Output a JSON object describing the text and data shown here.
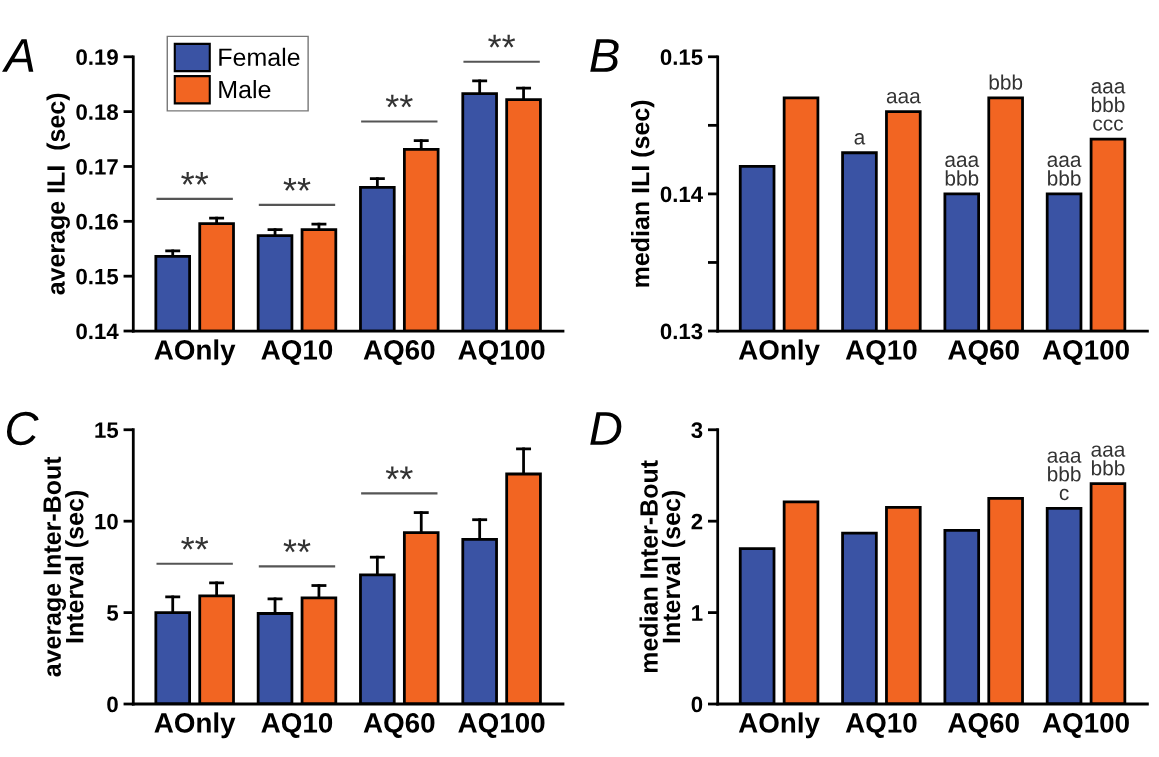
{
  "chart_data": [
    {
      "type": "bar",
      "title": "A",
      "ylabel": "average ILI  (sec)",
      "categories": [
        "AOnly",
        "AQ10",
        "AQ60",
        "AQ100"
      ],
      "ylim": [
        0.14,
        0.19
      ],
      "yticks": [
        0.14,
        0.15,
        0.16,
        0.17,
        0.18,
        0.19
      ],
      "legend": "top left",
      "grid": false,
      "series": [
        {
          "name": "Female",
          "color": "#3a53a4",
          "values": [
            0.1536,
            0.1574,
            0.1662,
            0.1833
          ],
          "errors": [
            [
              0.1536,
              0.1546
            ],
            [
              0.1574,
              0.1585
            ],
            [
              0.1662,
              0.1678
            ],
            [
              0.1833,
              0.1856
            ]
          ]
        },
        {
          "name": "Male",
          "color": "#f26522",
          "values": [
            0.1596,
            0.1585,
            0.1731,
            0.1822
          ],
          "errors": [
            [
              0.1596,
              0.1606
            ],
            [
              0.1585,
              0.1595
            ],
            [
              0.1731,
              0.1747
            ],
            [
              0.1822,
              0.1843
            ]
          ]
        }
      ],
      "annotations": [
        "**",
        "**",
        "**",
        "**"
      ]
    },
    {
      "type": "bar",
      "title": "B",
      "ylabel": "median ILI (sec)",
      "categories": [
        "AOnly",
        "AQ10",
        "AQ60",
        "AQ100"
      ],
      "ylim": [
        0.13,
        0.15
      ],
      "yticks": [
        0.13,
        {
          "value": 0.135,
          "label": null
        },
        0.14,
        {
          "value": 0.145,
          "label": null
        },
        0.15
      ],
      "grid": false,
      "series": [
        {
          "color": "#3a53a4",
          "values": [
            0.142,
            0.143,
            0.14,
            0.14
          ],
          "value_labels": [
            null,
            "a",
            "aaa\nbbb",
            "aaa\nbbb"
          ]
        },
        {
          "color": "#f26522",
          "values": [
            0.147,
            0.146,
            0.147,
            0.144
          ],
          "value_labels": [
            null,
            "aaa",
            "bbb",
            "aaa\nbbb\nccc"
          ]
        }
      ]
    },
    {
      "type": "bar",
      "title": "C",
      "ylabel": "average Inter-Bout\nInterval (sec)",
      "categories": [
        "AOnly",
        "AQ10",
        "AQ60",
        "AQ100"
      ],
      "ylim": [
        0,
        15
      ],
      "yticks": [
        0,
        5,
        10,
        15
      ],
      "grid": false,
      "series": [
        {
          "color": "#3a53a4",
          "values": [
            5.0,
            4.95,
            7.06,
            9.0
          ],
          "errors": [
            [
              5.0,
              5.86
            ],
            [
              4.95,
              5.75
            ],
            [
              7.06,
              8.03
            ],
            [
              9.0,
              10.08
            ]
          ]
        },
        {
          "color": "#f26522",
          "values": [
            5.92,
            5.81,
            9.37,
            12.58
          ],
          "errors": [
            [
              5.92,
              6.62
            ],
            [
              5.81,
              6.48
            ],
            [
              9.37,
              10.47
            ],
            [
              12.58,
              13.95
            ]
          ]
        }
      ],
      "annotations": [
        "**",
        "**",
        "**"
      ]
    },
    {
      "type": "bar",
      "title": "D",
      "ylabel": "median Inter-Bout\nInterval (sec)",
      "categories": [
        "AOnly",
        "AQ10",
        "AQ60",
        "AQ100"
      ],
      "ylim": [
        0,
        3
      ],
      "yticks": [
        0,
        1,
        2,
        3
      ],
      "grid": false,
      "series": [
        {
          "color": "#3a53a4",
          "values": [
            1.7,
            1.87,
            1.9,
            2.14
          ],
          "value_labels": [
            null,
            null,
            null,
            "aaa\nbbb\nc"
          ]
        },
        {
          "color": "#f26522",
          "values": [
            2.21,
            2.15,
            2.25,
            2.41
          ],
          "value_labels": [
            null,
            null,
            null,
            "aaa\nbbb"
          ]
        }
      ]
    }
  ]
}
